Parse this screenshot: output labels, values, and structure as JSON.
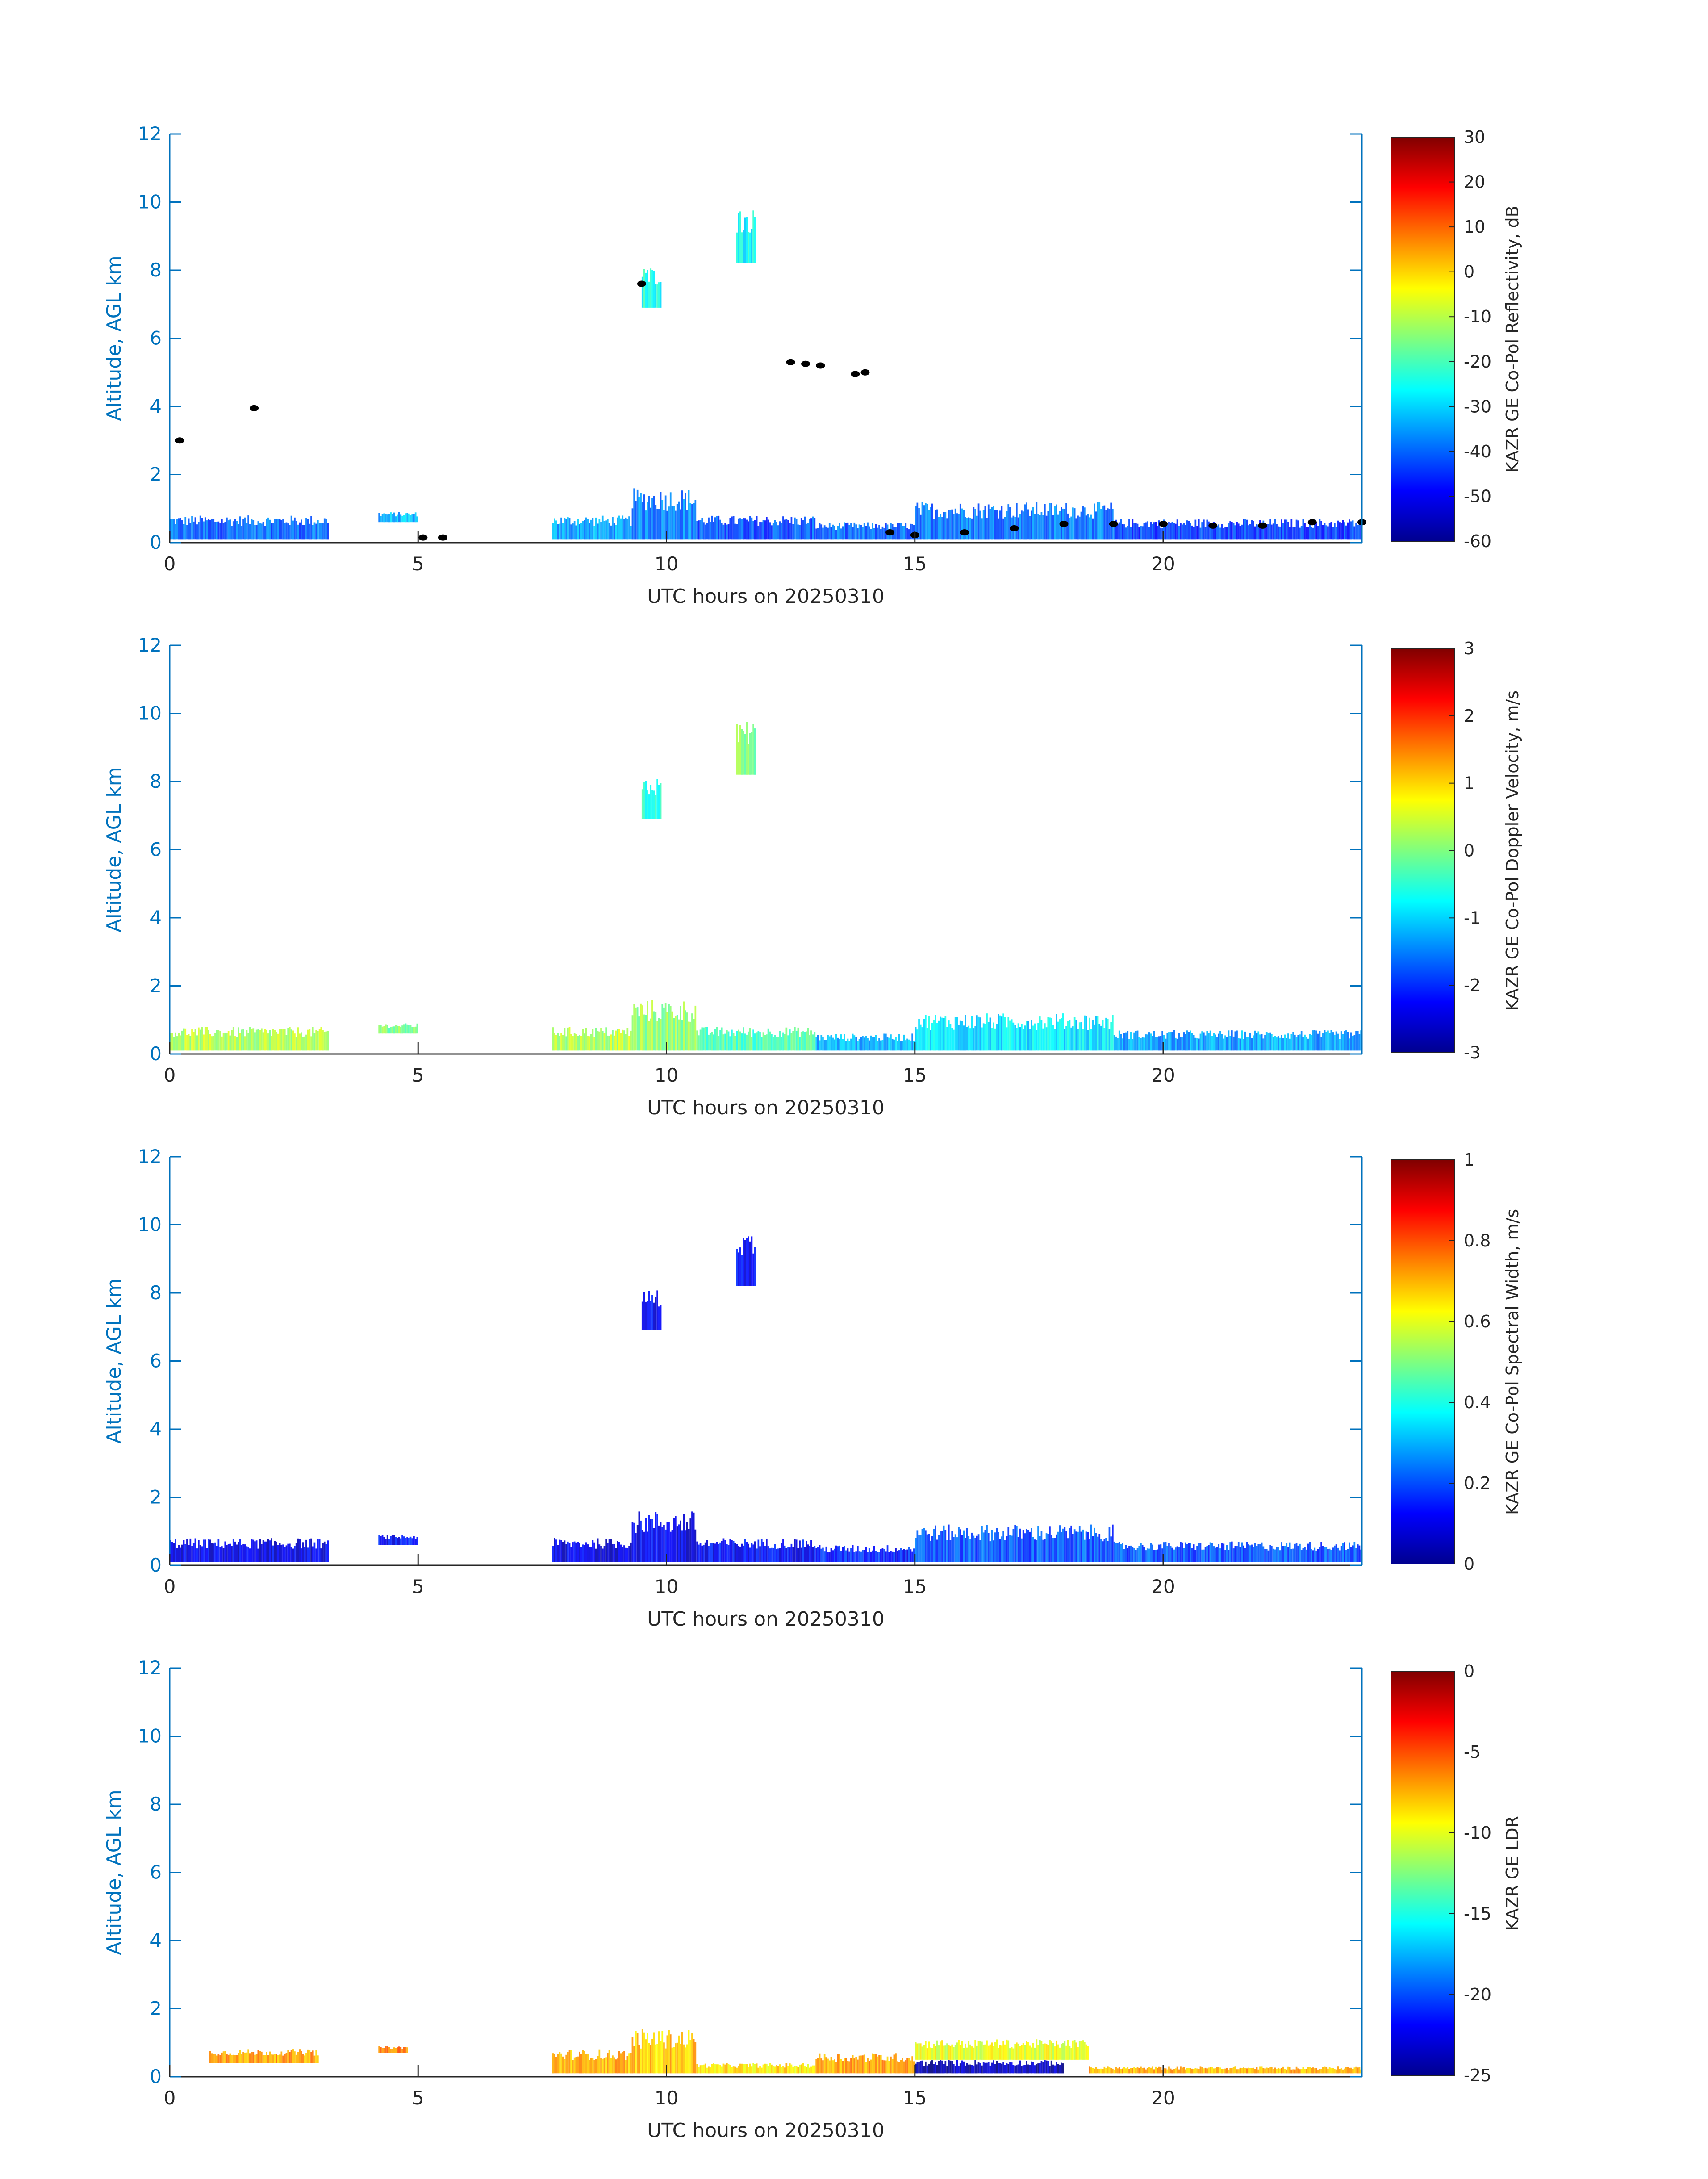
{
  "figure": {
    "background": "#ffffff",
    "axis_color": "#0072bd"
  },
  "chart_data": [
    {
      "type": "heatmap",
      "title": "",
      "xlabel": "UTC hours on 20250310",
      "ylabel": "Altitude, AGL km",
      "xlim": [
        0,
        24
      ],
      "ylim": [
        0,
        12
      ],
      "xticks": [
        0,
        5,
        10,
        15,
        20
      ],
      "yticks": [
        0,
        2,
        4,
        6,
        8,
        10,
        12
      ],
      "colorbar": {
        "label": "KAZR GE Co-Pol Reflectivity, dB",
        "range": [
          -60,
          30
        ],
        "ticks": [
          30,
          20,
          10,
          0,
          -10,
          -20,
          -30,
          -40,
          -50,
          -60
        ],
        "colormap": "jet"
      },
      "features": [
        {
          "t": [
            0,
            3.2
          ],
          "z": [
            0.1,
            0.8
          ],
          "level": 0.22
        },
        {
          "t": [
            4.2,
            5
          ],
          "z": [
            0.6,
            0.9
          ],
          "level": 0.3
        },
        {
          "t": [
            7.7,
            9.3
          ],
          "z": [
            0.1,
            0.8
          ],
          "level": 0.28
        },
        {
          "t": [
            9.3,
            10.6
          ],
          "z": [
            0.1,
            1.6
          ],
          "level": 0.25
        },
        {
          "t": [
            10.6,
            13
          ],
          "z": [
            0.1,
            0.8
          ],
          "level": 0.2
        },
        {
          "t": [
            13,
            15
          ],
          "z": [
            0.1,
            0.6
          ],
          "level": 0.22
        },
        {
          "t": [
            15,
            19
          ],
          "z": [
            0.1,
            1.2
          ],
          "level": 0.24
        },
        {
          "t": [
            19,
            24
          ],
          "z": [
            0.1,
            0.7
          ],
          "level": 0.18
        },
        {
          "t": [
            9.5,
            9.9
          ],
          "z": [
            6.9,
            8.1
          ],
          "level": 0.4
        },
        {
          "t": [
            11.4,
            11.8
          ],
          "z": [
            8.2,
            9.8
          ],
          "level": 0.38
        }
      ],
      "cloud_base_points": [
        {
          "t": 0.2,
          "z": 3.0
        },
        {
          "t": 1.7,
          "z": 3.95
        },
        {
          "t": 9.5,
          "z": 7.6
        },
        {
          "t": 12.5,
          "z": 5.3
        },
        {
          "t": 12.8,
          "z": 5.25
        },
        {
          "t": 13.1,
          "z": 5.2
        },
        {
          "t": 13.8,
          "z": 4.95
        },
        {
          "t": 14.0,
          "z": 5.0
        },
        {
          "t": 5.1,
          "z": 0.15
        },
        {
          "t": 5.5,
          "z": 0.15
        },
        {
          "t": 14.5,
          "z": 0.3
        },
        {
          "t": 15.0,
          "z": 0.22
        },
        {
          "t": 16.0,
          "z": 0.3
        },
        {
          "t": 17.0,
          "z": 0.42
        },
        {
          "t": 18.0,
          "z": 0.55
        },
        {
          "t": 19.0,
          "z": 0.55
        },
        {
          "t": 20.0,
          "z": 0.55
        },
        {
          "t": 21.0,
          "z": 0.5
        },
        {
          "t": 22.0,
          "z": 0.5
        },
        {
          "t": 23.0,
          "z": 0.6
        },
        {
          "t": 24.0,
          "z": 0.6
        }
      ]
    },
    {
      "type": "heatmap",
      "title": "",
      "xlabel": "UTC hours on 20250310",
      "ylabel": "Altitude, AGL km",
      "xlim": [
        0,
        24
      ],
      "ylim": [
        0,
        12
      ],
      "xticks": [
        0,
        5,
        10,
        15,
        20
      ],
      "yticks": [
        0,
        2,
        4,
        6,
        8,
        10,
        12
      ],
      "colorbar": {
        "label": "KAZR GE Co-Pol Doppler Velocity, m/s",
        "range": [
          -3,
          3
        ],
        "ticks": [
          3,
          2,
          1,
          0,
          -1,
          -2,
          -3
        ],
        "colormap": "jet"
      },
      "features": [
        {
          "t": [
            0,
            3.2
          ],
          "z": [
            0.1,
            0.8
          ],
          "level": 0.55
        },
        {
          "t": [
            4.2,
            5
          ],
          "z": [
            0.6,
            0.9
          ],
          "level": 0.5
        },
        {
          "t": [
            7.7,
            9.3
          ],
          "z": [
            0.1,
            0.8
          ],
          "level": 0.55
        },
        {
          "t": [
            9.3,
            10.6
          ],
          "z": [
            0.1,
            1.6
          ],
          "level": 0.52
        },
        {
          "t": [
            10.6,
            13
          ],
          "z": [
            0.1,
            0.8
          ],
          "level": 0.45
        },
        {
          "t": [
            13,
            15
          ],
          "z": [
            0.1,
            0.6
          ],
          "level": 0.3
        },
        {
          "t": [
            15,
            19
          ],
          "z": [
            0.1,
            1.2
          ],
          "level": 0.35
        },
        {
          "t": [
            19,
            24
          ],
          "z": [
            0.1,
            0.7
          ],
          "level": 0.28
        },
        {
          "t": [
            9.5,
            9.9
          ],
          "z": [
            6.9,
            8.1
          ],
          "level": 0.42
        },
        {
          "t": [
            11.4,
            11.8
          ],
          "z": [
            8.2,
            9.8
          ],
          "level": 0.5
        }
      ],
      "cloud_base_points": []
    },
    {
      "type": "heatmap",
      "title": "",
      "xlabel": "UTC hours on 20250310",
      "ylabel": "Altitude, AGL km",
      "xlim": [
        0,
        24
      ],
      "ylim": [
        0,
        12
      ],
      "xticks": [
        0,
        5,
        10,
        15,
        20
      ],
      "yticks": [
        0,
        2,
        4,
        6,
        8,
        10,
        12
      ],
      "colorbar": {
        "label": "KAZR GE Co-Pol Spectral Width, m/s",
        "range": [
          0,
          1
        ],
        "ticks": [
          1,
          0.8,
          0.6,
          0.4,
          0.2,
          0
        ],
        "colormap": "jet"
      },
      "features": [
        {
          "t": [
            0,
            3.2
          ],
          "z": [
            0.1,
            0.8
          ],
          "level": 0.1
        },
        {
          "t": [
            4.2,
            5
          ],
          "z": [
            0.6,
            0.9
          ],
          "level": 0.12
        },
        {
          "t": [
            7.7,
            9.3
          ],
          "z": [
            0.1,
            0.8
          ],
          "level": 0.1
        },
        {
          "t": [
            9.3,
            10.6
          ],
          "z": [
            0.1,
            1.6
          ],
          "level": 0.1
        },
        {
          "t": [
            10.6,
            13
          ],
          "z": [
            0.1,
            0.8
          ],
          "level": 0.12
        },
        {
          "t": [
            13,
            15
          ],
          "z": [
            0.1,
            0.6
          ],
          "level": 0.15
        },
        {
          "t": [
            15,
            19
          ],
          "z": [
            0.1,
            1.2
          ],
          "level": 0.2
        },
        {
          "t": [
            19,
            24
          ],
          "z": [
            0.1,
            0.7
          ],
          "level": 0.2
        },
        {
          "t": [
            9.5,
            9.9
          ],
          "z": [
            6.9,
            8.1
          ],
          "level": 0.12
        },
        {
          "t": [
            11.4,
            11.8
          ],
          "z": [
            8.2,
            9.8
          ],
          "level": 0.12
        }
      ],
      "cloud_base_points": []
    },
    {
      "type": "heatmap",
      "title": "",
      "xlabel": "UTC hours on 20250310",
      "ylabel": "Altitude, AGL km",
      "xlim": [
        0,
        24
      ],
      "ylim": [
        0,
        12
      ],
      "xticks": [
        0,
        5,
        10,
        15,
        20
      ],
      "yticks": [
        0,
        2,
        4,
        6,
        8,
        10,
        12
      ],
      "colorbar": {
        "label": "KAZR GE LDR",
        "range": [
          -25,
          0
        ],
        "ticks": [
          0,
          -5,
          -10,
          -15,
          -20,
          -25
        ],
        "colormap": "jet"
      },
      "features": [
        {
          "t": [
            0.8,
            3.0
          ],
          "z": [
            0.4,
            0.8
          ],
          "level": 0.72
        },
        {
          "t": [
            4.2,
            4.8
          ],
          "z": [
            0.7,
            0.9
          ],
          "level": 0.75
        },
        {
          "t": [
            7.7,
            9.3
          ],
          "z": [
            0.1,
            0.8
          ],
          "level": 0.7
        },
        {
          "t": [
            9.3,
            10.6
          ],
          "z": [
            0.1,
            1.4
          ],
          "level": 0.68
        },
        {
          "t": [
            10.6,
            13
          ],
          "z": [
            0.1,
            0.4
          ],
          "level": 0.65
        },
        {
          "t": [
            13,
            15
          ],
          "z": [
            0.1,
            0.7
          ],
          "level": 0.72
        },
        {
          "t": [
            15,
            18.5
          ],
          "z": [
            0.5,
            1.1
          ],
          "level": 0.6
        },
        {
          "t": [
            15,
            18
          ],
          "z": [
            0.1,
            0.5
          ],
          "level": 0.05
        },
        {
          "t": [
            18.5,
            24
          ],
          "z": [
            0.1,
            0.3
          ],
          "level": 0.7
        }
      ],
      "cloud_base_points": []
    }
  ]
}
